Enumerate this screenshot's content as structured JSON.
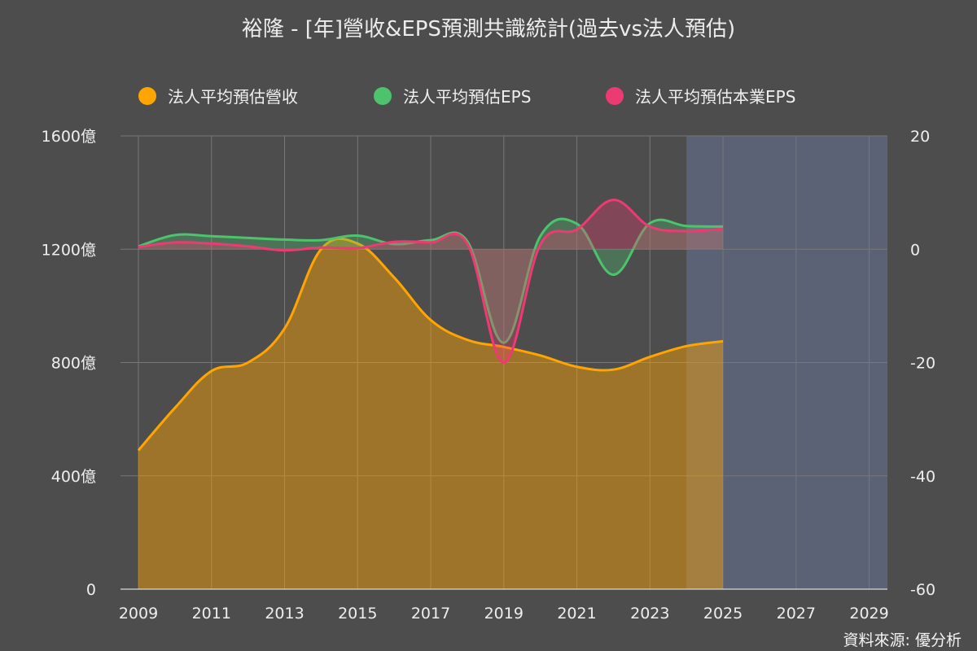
{
  "title": "裕隆 - [年]營收&EPS預測共識統計(過去vs法人預估)",
  "source": "資料來源: 優分析",
  "colors": {
    "background": "#4d4d4d",
    "forecast_band": "#5b6276",
    "revenue": "#ffa500",
    "eps": "#4cc36c",
    "core_eps": "#ee3a73",
    "grid": "#777777"
  },
  "chart_data": {
    "type": "line",
    "title": "裕隆 - [年]營收&EPS預測共識統計(過去vs法人預估)",
    "legend": {
      "placement": "top-center"
    },
    "forecast_region": {
      "x_start": 2024,
      "x_end": 2029.5
    },
    "x_axis": {
      "min": 2009,
      "max": 2029.5,
      "ticks": [
        "2009",
        "2011",
        "2013",
        "2015",
        "2017",
        "2019",
        "2021",
        "2023",
        "2025",
        "2027",
        "2029"
      ]
    },
    "y_left": {
      "min": 0,
      "max": 1600,
      "ticks": [
        "0",
        "400億",
        "800億",
        "1200億",
        "1600億"
      ]
    },
    "y_right": {
      "min": -60,
      "max": 20,
      "ticks": [
        "-60",
        "-40",
        "-20",
        "0",
        "20"
      ]
    },
    "grid": true,
    "series": [
      {
        "name": "法人平均預估營收",
        "axis": "left",
        "color": "#ffa500",
        "area": true,
        "x": [
          2009,
          2010,
          2011,
          2012,
          2013,
          2014,
          2015,
          2016,
          2017,
          2018,
          2019,
          2020,
          2021,
          2022,
          2023,
          2024,
          2025
        ],
        "values": [
          490,
          640,
          770,
          800,
          920,
          1200,
          1220,
          1100,
          950,
          880,
          855,
          825,
          785,
          775,
          820,
          858,
          875
        ]
      },
      {
        "name": "法人平均預估EPS",
        "axis": "right",
        "color": "#4cc36c",
        "area": true,
        "x": [
          2009,
          2010,
          2011,
          2012,
          2013,
          2014,
          2015,
          2016,
          2017,
          2018,
          2019,
          2020,
          2021,
          2022,
          2023,
          2024,
          2025
        ],
        "values": [
          0.5,
          2.5,
          2.3,
          2.0,
          1.7,
          1.6,
          2.4,
          0.9,
          1.6,
          1.4,
          -16.5,
          2.3,
          4.5,
          -4.5,
          4.6,
          4.1,
          4.0
        ]
      },
      {
        "name": "法人平均預估本業EPS",
        "axis": "right",
        "color": "#ee3a73",
        "area": true,
        "x": [
          2009,
          2010,
          2011,
          2012,
          2013,
          2014,
          2015,
          2016,
          2017,
          2018,
          2019,
          2020,
          2021,
          2022,
          2023,
          2024,
          2025
        ],
        "values": [
          0.4,
          1.2,
          1.0,
          0.5,
          -0.2,
          0.3,
          0.2,
          1.3,
          1.2,
          1.0,
          -20.0,
          0.8,
          3.5,
          8.7,
          4.0,
          3.2,
          3.6
        ]
      }
    ]
  }
}
